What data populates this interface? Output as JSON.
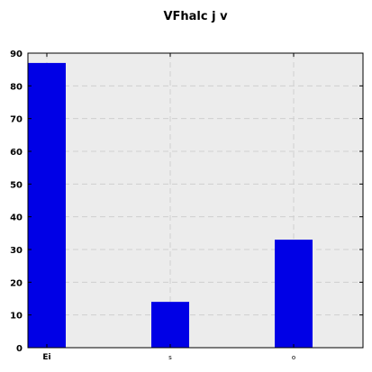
{
  "chart_data": {
    "type": "bar",
    "title": "VFhalc j v",
    "xlabel": "",
    "ylabel": "",
    "categories": [
      "Ei",
      "s",
      "o"
    ],
    "values": [
      87,
      14,
      33
    ],
    "ylim": [
      0,
      90
    ],
    "yticks": [
      0,
      10,
      20,
      30,
      40,
      50,
      60,
      70,
      80,
      90
    ],
    "grid": true,
    "bar_color": "#0000e6",
    "plot_background": "#ececec"
  }
}
